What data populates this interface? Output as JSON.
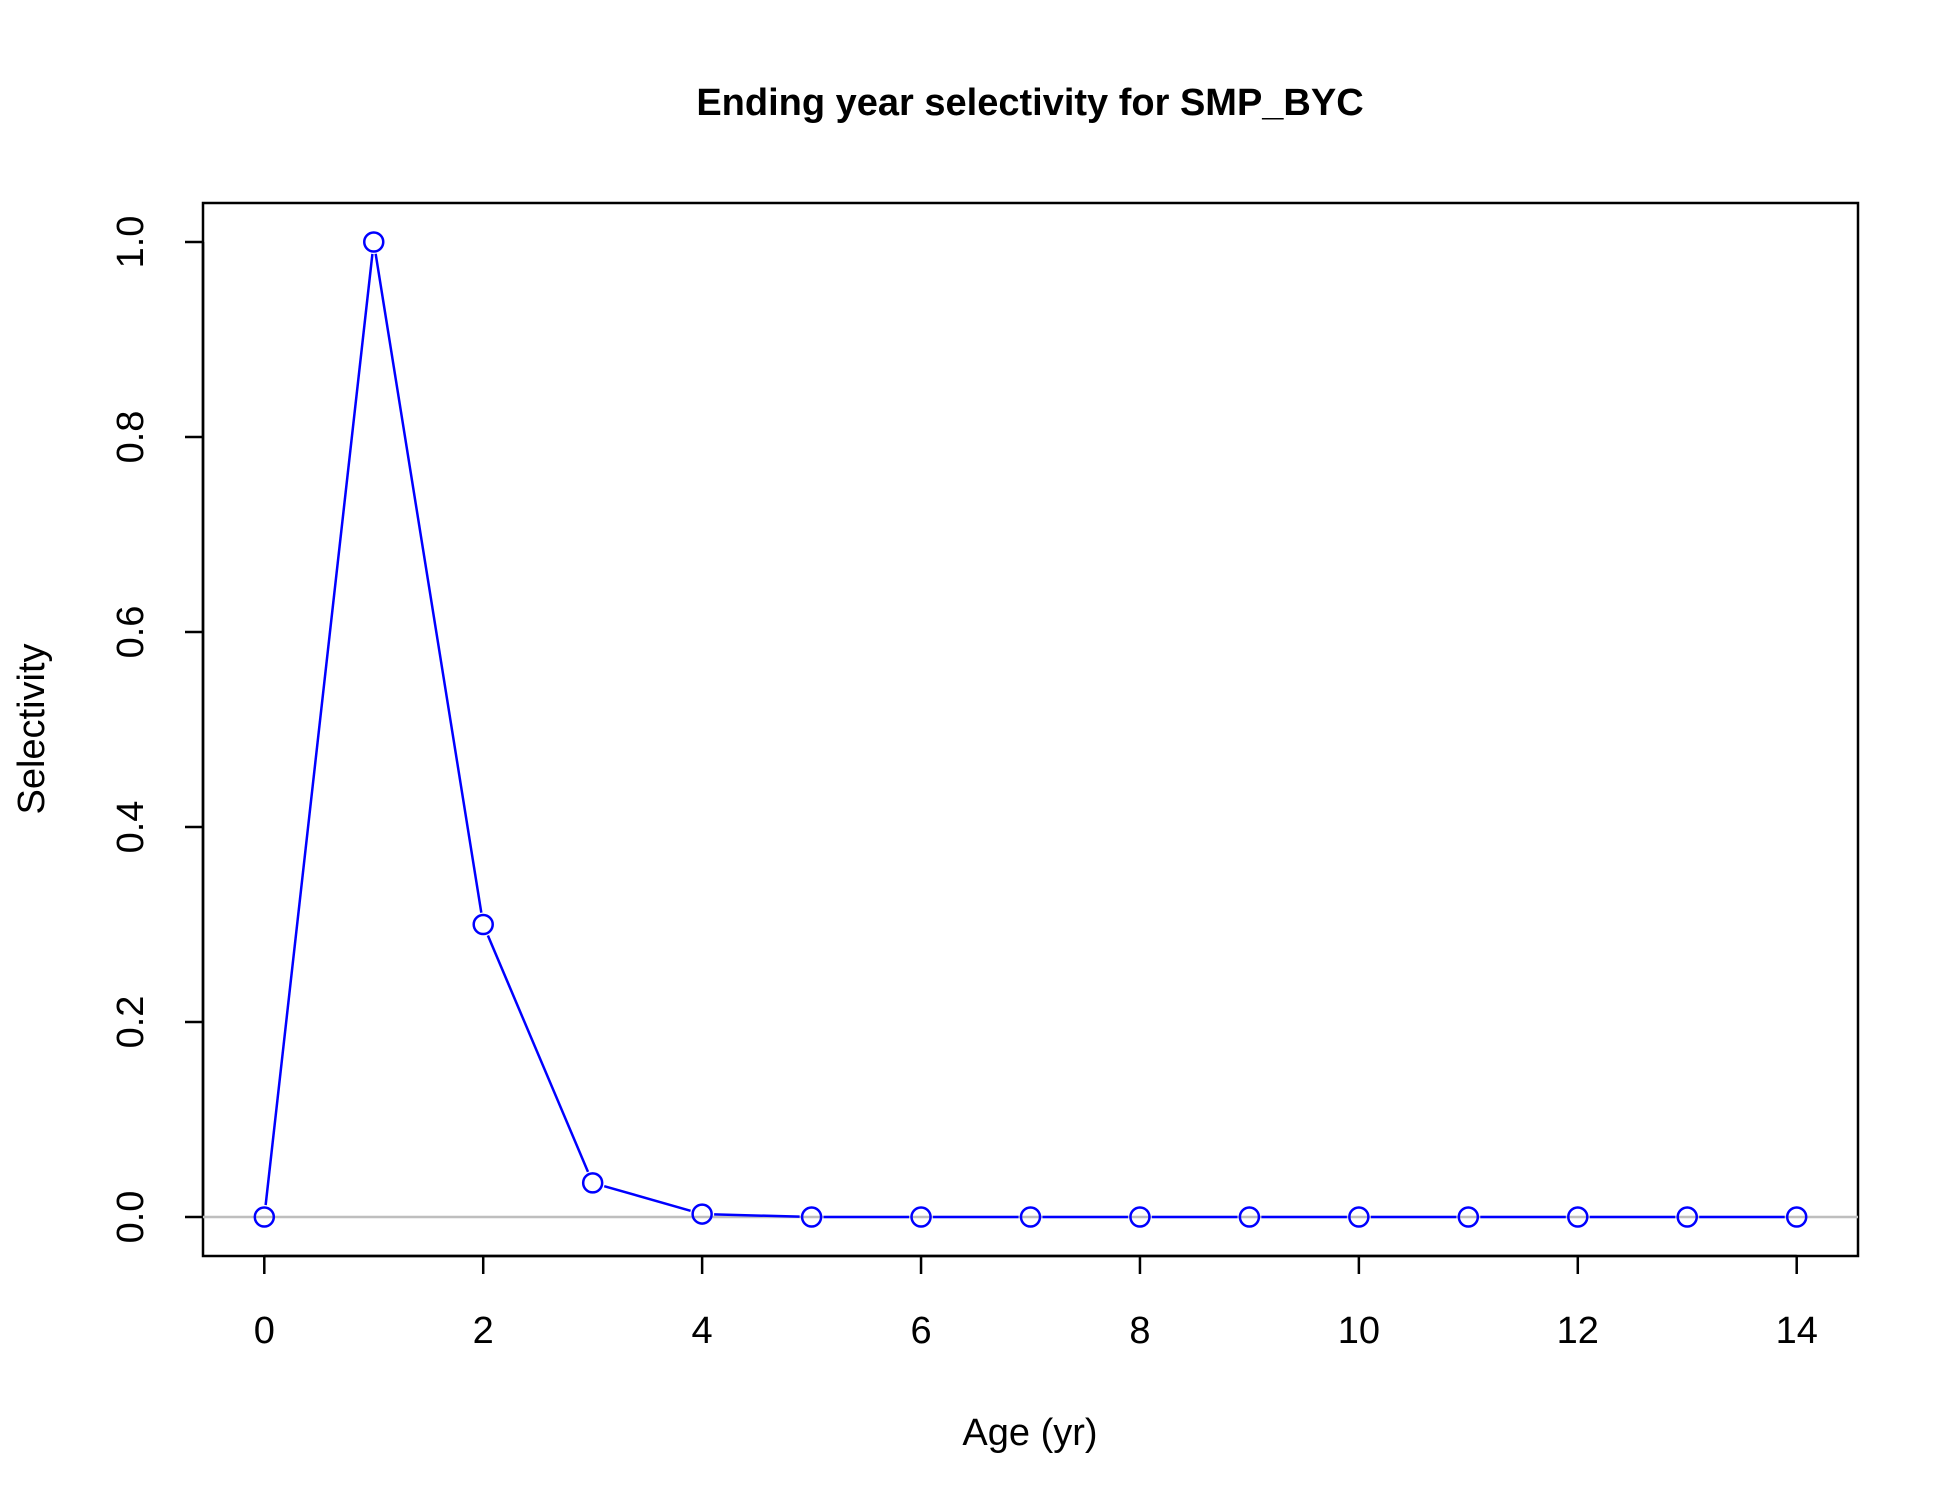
{
  "chart_data": {
    "type": "line",
    "title": "Ending year selectivity for SMP_BYC",
    "xlabel": "Age (yr)",
    "ylabel": "Selectivity",
    "x": [
      0,
      1,
      2,
      3,
      4,
      5,
      6,
      7,
      8,
      9,
      10,
      11,
      12,
      13,
      14
    ],
    "series": [
      {
        "values": [
          0.0,
          1.0,
          0.3,
          0.035,
          0.003,
          0.0,
          0.0,
          0.0,
          0.0,
          0.0,
          0.0,
          0.0,
          0.0,
          0.0,
          0.0
        ]
      }
    ],
    "xlim": [
      -0.56,
      14.56
    ],
    "ylim": [
      -0.04,
      1.04
    ],
    "xticks": [
      0,
      2,
      4,
      6,
      8,
      10,
      12,
      14
    ],
    "xtick_labels": [
      "0",
      "2",
      "4",
      "6",
      "8",
      "10",
      "12",
      "14"
    ],
    "yticks": [
      0.0,
      0.2,
      0.4,
      0.6,
      0.8,
      1.0
    ],
    "ytick_labels": [
      "0.0",
      "0.2",
      "0.4",
      "0.6",
      "0.8",
      "1.0"
    ],
    "reference_line_y": 0,
    "colors": {
      "series": "#0000ff",
      "reference_line": "#bebebe",
      "axes": "#000000"
    },
    "grid": false,
    "legend": "none"
  }
}
